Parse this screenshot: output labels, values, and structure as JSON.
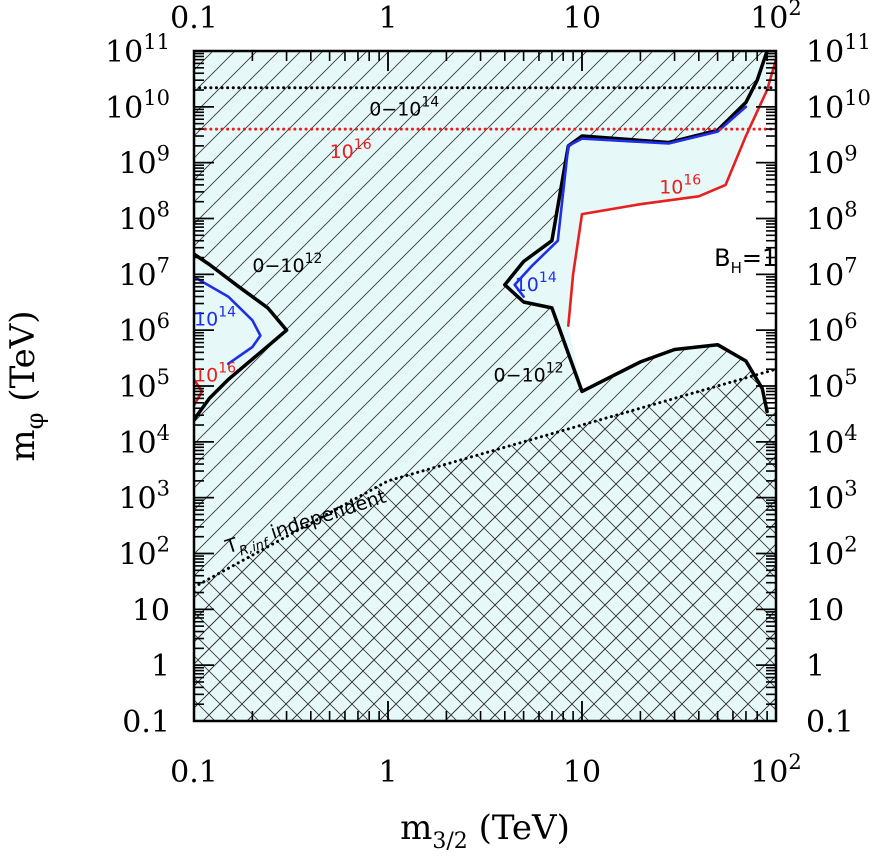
{
  "chart_data": {
    "type": "line",
    "title": "",
    "xlabel": "m",
    "xlabel_sub": "3/2",
    "xlabel_unit": "(TeV)",
    "ylabel": "m",
    "ylabel_sub": "φ",
    "ylabel_unit": "(TeV)",
    "x_scale": "log",
    "y_scale": "log",
    "xlim": [
      0.1,
      100
    ],
    "ylim": [
      0.1,
      100000000000
    ],
    "x_ticks": [
      {
        "value": 0.1,
        "base": "0.1",
        "exp": ""
      },
      {
        "value": 1,
        "base": "1",
        "exp": ""
      },
      {
        "value": 10,
        "base": "10",
        "exp": ""
      },
      {
        "value": 100,
        "base": "10",
        "exp": "2"
      }
    ],
    "y_ticks": [
      {
        "value": 0.1,
        "base": "0.1",
        "exp": ""
      },
      {
        "value": 1,
        "base": "1",
        "exp": ""
      },
      {
        "value": 10,
        "base": "10",
        "exp": ""
      },
      {
        "value": 100,
        "base": "10",
        "exp": "2"
      },
      {
        "value": 1000,
        "base": "10",
        "exp": "3"
      },
      {
        "value": 10000,
        "base": "10",
        "exp": "4"
      },
      {
        "value": 100000,
        "base": "10",
        "exp": "5"
      },
      {
        "value": 1000000,
        "base": "10",
        "exp": "6"
      },
      {
        "value": 10000000,
        "base": "10",
        "exp": "7"
      },
      {
        "value": 100000000,
        "base": "10",
        "exp": "8"
      },
      {
        "value": 1000000000,
        "base": "10",
        "exp": "9"
      },
      {
        "value": 10000000000,
        "base": "10",
        "exp": "10"
      },
      {
        "value": 100000000000,
        "base": "10",
        "exp": "11"
      }
    ],
    "colors": {
      "fill": "#e6f8f8",
      "black": "#000000",
      "blue": "#1f2ee8",
      "red": "#e81f1f",
      "green": "#1f9e3a"
    },
    "series": [
      {
        "name": "black-upper-left",
        "color": "#000000",
        "points": [
          [
            0.1,
            23000000
          ],
          [
            0.12,
            15000000
          ],
          [
            0.17,
            6000000
          ],
          [
            0.24,
            2500000
          ],
          [
            0.3,
            1000000
          ],
          [
            0.22,
            400000
          ],
          [
            0.15,
            130000
          ],
          [
            0.12,
            60000
          ],
          [
            0.1,
            25000
          ]
        ]
      },
      {
        "name": "blue-left",
        "color": "#1f2ee8",
        "points": [
          [
            0.1,
            9000000
          ],
          [
            0.15,
            4000000
          ],
          [
            0.2,
            1500000
          ],
          [
            0.22,
            800000
          ],
          [
            0.2,
            500000
          ],
          [
            0.15,
            250000
          ]
        ]
      },
      {
        "name": "red-left",
        "color": "#e81f1f",
        "points": [
          [
            0.1,
            130000
          ],
          [
            0.11,
            80000
          ],
          [
            0.1,
            45000
          ]
        ]
      },
      {
        "name": "black-right-contour",
        "color": "#000000",
        "points": [
          [
            4,
            6500000
          ],
          [
            5,
            17000000
          ],
          [
            7,
            40000000
          ],
          [
            8.5,
            2000000000
          ],
          [
            10,
            3000000000
          ],
          [
            28,
            2300000000
          ],
          [
            50,
            3800000000
          ],
          [
            70,
            12000000000
          ],
          [
            80,
            30000000000
          ],
          [
            90,
            100000000000
          ]
        ]
      },
      {
        "name": "black-right-lower",
        "color": "#000000",
        "points": [
          [
            4,
            6500000
          ],
          [
            5,
            3200000
          ],
          [
            7,
            2500000
          ],
          [
            10,
            80000
          ],
          [
            20,
            270000
          ],
          [
            30,
            450000
          ],
          [
            50,
            550000
          ],
          [
            70,
            280000
          ],
          [
            85,
            90000
          ],
          [
            90,
            35000
          ]
        ]
      },
      {
        "name": "blue-right",
        "color": "#1f2ee8",
        "points": [
          [
            5,
            4000000
          ],
          [
            4.5,
            6500000
          ],
          [
            5.5,
            14000000
          ],
          [
            7.5,
            40000000
          ],
          [
            8.5,
            2000000000
          ],
          [
            10,
            2700000000
          ],
          [
            28,
            2200000000
          ],
          [
            50,
            3600000000
          ],
          [
            70,
            10000000000
          ]
        ]
      },
      {
        "name": "red-right",
        "color": "#e81f1f",
        "points": [
          [
            8.5,
            1200000
          ],
          [
            9,
            10000000
          ],
          [
            10,
            120000000
          ],
          [
            20,
            180000000
          ],
          [
            40,
            250000000
          ],
          [
            55,
            400000000
          ],
          [
            70,
            3000000000
          ],
          [
            90,
            20000000000
          ],
          [
            100,
            70000000000
          ]
        ]
      },
      {
        "name": "black-dotted-top",
        "color": "#000000",
        "style": "dotted",
        "points": [
          [
            0.1,
            22000000000
          ],
          [
            100,
            22000000000
          ]
        ]
      },
      {
        "name": "red-dotted",
        "color": "#e81f1f",
        "style": "dotted",
        "points": [
          [
            0.1,
            4000000000
          ],
          [
            100,
            4000000000
          ]
        ]
      },
      {
        "name": "tr-independent",
        "color": "#000000",
        "style": "dotted",
        "points": [
          [
            0.1,
            25
          ],
          [
            1,
            2000
          ],
          [
            10,
            20000
          ],
          [
            100,
            200000
          ]
        ]
      }
    ],
    "annotations": [
      {
        "base": "0−10",
        "exp": "14",
        "color": "#000000",
        "x": 0.8,
        "y": 7000000000
      },
      {
        "base": "10",
        "exp": "16",
        "color": "#e81f1f",
        "x": 0.5,
        "y": 1200000000
      },
      {
        "base": "10",
        "exp": "16",
        "color": "#e81f1f",
        "x": 25,
        "y": 280000000
      },
      {
        "base": "0−10",
        "exp": "12",
        "color": "#000000",
        "x": 0.2,
        "y": 11000000
      },
      {
        "base": "10",
        "exp": "14",
        "color": "#1f2ee8",
        "x": 0.1,
        "y": 1200000
      },
      {
        "base": "10",
        "exp": "14",
        "color": "#1f2ee8",
        "x": 4.5,
        "y": 5000000
      },
      {
        "base": "10",
        "exp": "16",
        "color": "#e81f1f",
        "x": 0.1,
        "y": 120000
      },
      {
        "base": "0−10",
        "exp": "12",
        "color": "#000000",
        "x": 3.5,
        "y": 120000
      }
    ],
    "bh_label": {
      "base": "B",
      "sub": "H",
      "rest": "=1",
      "x": 48,
      "y": 14000000
    },
    "tr_label": {
      "base": "T",
      "sub": "R,inf",
      "rest": " independent",
      "x": 0.15,
      "y": 100
    }
  }
}
